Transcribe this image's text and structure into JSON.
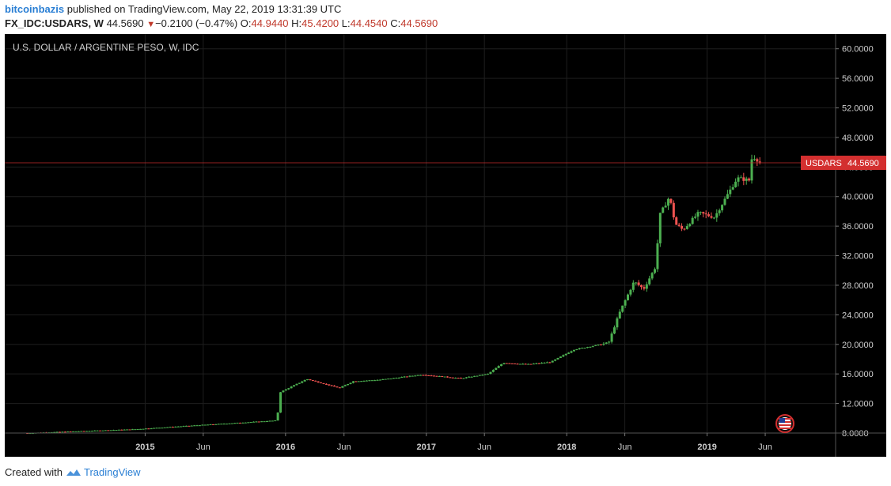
{
  "header": {
    "author": "bitcoinbazis",
    "published_text": " published on TradingView.com, May 22, 2019 13:31:39 UTC",
    "symbol": "FX_IDC:USDARS, W",
    "last": "44.5690",
    "change": "−0.2100 (−0.47%)",
    "o_label": "O:",
    "o_value": "44.9440",
    "h_label": "H:",
    "h_value": "45.4200",
    "l_label": "L:",
    "l_value": "44.4540",
    "c_label": "C:",
    "c_value": "44.5690"
  },
  "footer": {
    "created_with": "Created with",
    "brand": "TradingView"
  },
  "colors": {
    "up": "#4caf50",
    "down": "#ef5350",
    "price_label": "#d32f2f",
    "bg": "#000000",
    "grid": "#1e1e1e"
  },
  "chart_data": {
    "type": "candlestick",
    "title": "U.S. DOLLAR / ARGENTINE PESO, W, IDC",
    "ylim": [
      8,
      62
    ],
    "y_ticks": [
      "60.0000",
      "56.0000",
      "52.0000",
      "48.0000",
      "44.0000",
      "40.0000",
      "36.0000",
      "32.0000",
      "28.0000",
      "24.0000",
      "20.0000",
      "16.0000",
      "12.0000",
      "8.0000"
    ],
    "x_ticks": [
      "2015",
      "Jun",
      "2016",
      "Jun",
      "2017",
      "Jun",
      "2018",
      "Jun",
      "2019",
      "Jun"
    ],
    "x_tick_dates": [
      "2015-01-01",
      "2015-06-01",
      "2016-01-01",
      "2016-06-01",
      "2017-01-01",
      "2017-06-01",
      "2018-01-01",
      "2018-06-01",
      "2019-01-01",
      "2019-06-01"
    ],
    "x_range": [
      "2014-01-01",
      "2019-12-01"
    ],
    "price_label": {
      "symbol": "USDARS",
      "value": "44.5690",
      "price": 44.569
    },
    "flag_icon": "us-flag-icon",
    "anchors": [
      [
        "2014-03-01",
        8.0
      ],
      [
        "2014-12-01",
        8.5
      ],
      [
        "2015-06-01",
        9.1
      ],
      [
        "2015-12-10",
        9.7
      ],
      [
        "2015-12-17",
        13.5
      ],
      [
        "2016-02-25",
        15.3
      ],
      [
        "2016-05-20",
        14.1
      ],
      [
        "2016-06-25",
        15.0
      ],
      [
        "2016-09-01",
        15.2
      ],
      [
        "2016-12-20",
        15.9
      ],
      [
        "2017-04-01",
        15.4
      ],
      [
        "2017-06-10",
        16.0
      ],
      [
        "2017-07-20",
        17.5
      ],
      [
        "2017-09-20",
        17.3
      ],
      [
        "2017-11-20",
        17.6
      ],
      [
        "2018-01-20",
        19.3
      ],
      [
        "2018-04-20",
        20.2
      ],
      [
        "2018-05-02",
        22.0
      ],
      [
        "2018-05-20",
        24.5
      ],
      [
        "2018-06-25",
        28.5
      ],
      [
        "2018-07-20",
        27.5
      ],
      [
        "2018-08-20",
        30.5
      ],
      [
        "2018-08-31",
        37.5
      ],
      [
        "2018-09-25",
        40.0
      ],
      [
        "2018-10-10",
        36.3
      ],
      [
        "2018-10-30",
        35.5
      ],
      [
        "2018-12-10",
        37.8
      ],
      [
        "2019-01-20",
        37.2
      ],
      [
        "2019-03-20",
        42.5
      ],
      [
        "2019-04-20",
        42.2
      ],
      [
        "2019-04-28",
        45.5
      ],
      [
        "2019-05-22",
        44.6
      ]
    ]
  }
}
